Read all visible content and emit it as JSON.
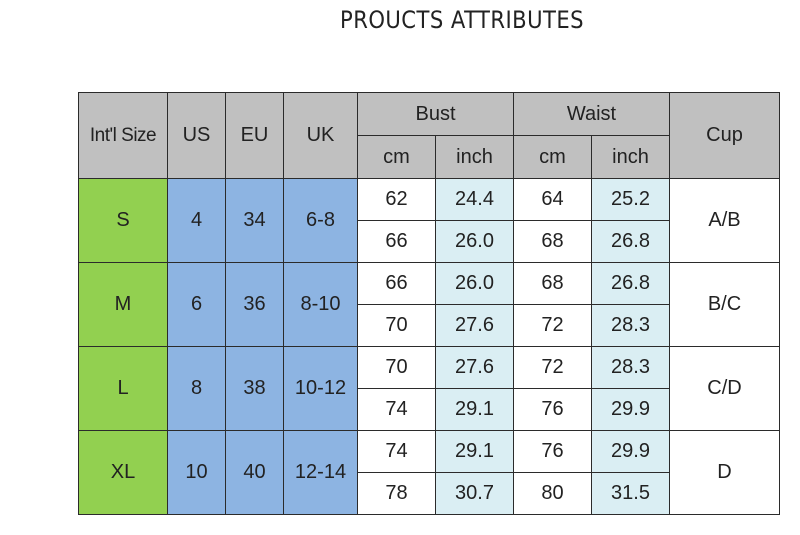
{
  "title": "PROUCTS ATTRIBUTES",
  "table": {
    "headers": {
      "intl_size": "Int'l Size",
      "us": "US",
      "eu": "EU",
      "uk": "UK",
      "bust": "Bust",
      "waist": "Waist",
      "cup": "Cup",
      "bust_cm": "cm",
      "bust_inch": "inch",
      "waist_cm": "cm",
      "waist_inch": "inch"
    },
    "sizes": [
      {
        "intl": "S",
        "us": "4",
        "eu": "34",
        "uk": "6-8",
        "cup": "A/B",
        "rows": [
          {
            "bust_cm": "62",
            "bust_inch": "24.4",
            "waist_cm": "64",
            "waist_inch": "25.2"
          },
          {
            "bust_cm": "66",
            "bust_inch": "26.0",
            "waist_cm": "68",
            "waist_inch": "26.8"
          }
        ]
      },
      {
        "intl": "M",
        "us": "6",
        "eu": "36",
        "uk": "8-10",
        "cup": "B/C",
        "rows": [
          {
            "bust_cm": "66",
            "bust_inch": "26.0",
            "waist_cm": "68",
            "waist_inch": "26.8"
          },
          {
            "bust_cm": "70",
            "bust_inch": "27.6",
            "waist_cm": "72",
            "waist_inch": "28.3"
          }
        ]
      },
      {
        "intl": "L",
        "us": "8",
        "eu": "38",
        "uk": "10-12",
        "cup": "C/D",
        "rows": [
          {
            "bust_cm": "70",
            "bust_inch": "27.6",
            "waist_cm": "72",
            "waist_inch": "28.3"
          },
          {
            "bust_cm": "74",
            "bust_inch": "29.1",
            "waist_cm": "76",
            "waist_inch": "29.9"
          }
        ]
      },
      {
        "intl": "XL",
        "us": "10",
        "eu": "40",
        "uk": "12-14",
        "cup": "D",
        "rows": [
          {
            "bust_cm": "74",
            "bust_inch": "29.1",
            "waist_cm": "76",
            "waist_inch": "29.9"
          },
          {
            "bust_cm": "78",
            "bust_inch": "30.7",
            "waist_cm": "80",
            "waist_inch": "31.5"
          }
        ]
      }
    ]
  }
}
